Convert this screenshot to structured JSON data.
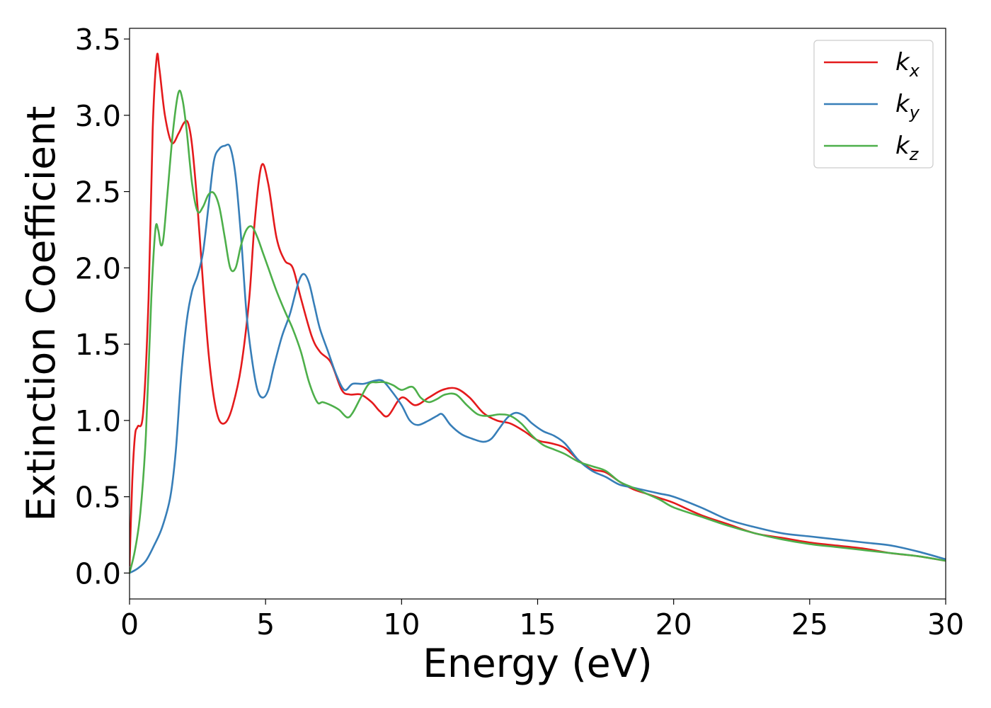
{
  "chart_data": {
    "type": "line",
    "title": "",
    "xlabel": "Energy (eV)",
    "ylabel": "Extinction Coefficient",
    "xlim": [
      0,
      30
    ],
    "ylim": [
      -0.17,
      3.57
    ],
    "xticks": [
      0,
      5,
      10,
      15,
      20,
      25,
      30
    ],
    "xtick_labels": [
      "0",
      "5",
      "10",
      "15",
      "20",
      "25",
      "30"
    ],
    "yticks": [
      0.0,
      0.5,
      1.0,
      1.5,
      2.0,
      2.5,
      3.0,
      3.5
    ],
    "ytick_labels": [
      "0.0",
      "0.5",
      "1.0",
      "1.5",
      "2.0",
      "2.5",
      "3.0",
      "3.5"
    ],
    "grid": false,
    "legend_position": "top-right",
    "series": [
      {
        "name": "k",
        "subscript": "x",
        "color": "#e41a1c",
        "x": [
          0,
          0.1,
          0.2,
          0.3,
          0.5,
          0.7,
          0.85,
          1.0,
          1.1,
          1.3,
          1.55,
          1.8,
          2.0,
          2.15,
          2.3,
          2.5,
          2.7,
          2.9,
          3.1,
          3.3,
          3.55,
          3.8,
          4.1,
          4.4,
          4.6,
          4.85,
          5.1,
          5.4,
          5.7,
          6.0,
          6.3,
          6.7,
          7.0,
          7.4,
          7.8,
          8.1,
          8.5,
          8.9,
          9.2,
          9.5,
          10.0,
          10.5,
          11.0,
          11.5,
          12.0,
          12.5,
          13.0,
          13.5,
          14.0,
          14.5,
          15.0,
          15.5,
          16.0,
          16.5,
          17.0,
          17.5,
          18.0,
          18.5,
          19.0,
          19.5,
          20.0,
          21.0,
          22.0,
          23.0,
          24.0,
          25.0,
          26.0,
          27.0,
          28.0,
          29.0,
          30.0
        ],
        "y": [
          0.05,
          0.6,
          0.9,
          0.96,
          1.05,
          1.8,
          2.9,
          3.38,
          3.3,
          3.0,
          2.82,
          2.88,
          2.95,
          2.95,
          2.8,
          2.4,
          1.9,
          1.45,
          1.15,
          1.0,
          0.99,
          1.1,
          1.35,
          1.8,
          2.3,
          2.67,
          2.55,
          2.2,
          2.05,
          2.0,
          1.8,
          1.55,
          1.45,
          1.38,
          1.2,
          1.17,
          1.17,
          1.12,
          1.06,
          1.03,
          1.15,
          1.1,
          1.15,
          1.2,
          1.21,
          1.15,
          1.05,
          1.0,
          0.98,
          0.93,
          0.87,
          0.85,
          0.82,
          0.74,
          0.68,
          0.66,
          0.6,
          0.55,
          0.52,
          0.49,
          0.46,
          0.38,
          0.32,
          0.26,
          0.23,
          0.2,
          0.18,
          0.16,
          0.13,
          0.11,
          0.08
        ]
      },
      {
        "name": "k",
        "subscript": "y",
        "color": "#377eb8",
        "x": [
          0,
          0.3,
          0.6,
          0.9,
          1.2,
          1.5,
          1.7,
          1.9,
          2.1,
          2.3,
          2.5,
          2.7,
          2.9,
          3.1,
          3.3,
          3.5,
          3.7,
          3.9,
          4.1,
          4.3,
          4.5,
          4.7,
          4.9,
          5.1,
          5.3,
          5.6,
          5.9,
          6.2,
          6.4,
          6.6,
          6.8,
          7.0,
          7.3,
          7.6,
          7.9,
          8.2,
          8.6,
          9.0,
          9.3,
          9.6,
          10.0,
          10.3,
          10.6,
          11.0,
          11.3,
          11.5,
          11.8,
          12.2,
          12.6,
          13.0,
          13.3,
          13.6,
          13.9,
          14.2,
          14.5,
          14.8,
          15.2,
          15.6,
          16.0,
          16.5,
          17.0,
          17.5,
          18.0,
          18.5,
          19.0,
          19.5,
          20.0,
          21.0,
          22.0,
          23.0,
          24.0,
          25.0,
          26.0,
          27.0,
          28.0,
          29.0,
          30.0
        ],
        "y": [
          0.0,
          0.03,
          0.08,
          0.18,
          0.3,
          0.5,
          0.8,
          1.3,
          1.65,
          1.85,
          1.95,
          2.1,
          2.4,
          2.7,
          2.78,
          2.8,
          2.79,
          2.6,
          2.2,
          1.7,
          1.4,
          1.2,
          1.15,
          1.2,
          1.35,
          1.55,
          1.7,
          1.9,
          1.96,
          1.9,
          1.75,
          1.6,
          1.45,
          1.3,
          1.2,
          1.24,
          1.24,
          1.26,
          1.26,
          1.2,
          1.1,
          1.0,
          0.97,
          1.0,
          1.03,
          1.04,
          0.97,
          0.91,
          0.88,
          0.86,
          0.88,
          0.95,
          1.02,
          1.05,
          1.03,
          0.98,
          0.93,
          0.9,
          0.85,
          0.74,
          0.67,
          0.63,
          0.58,
          0.56,
          0.54,
          0.52,
          0.5,
          0.43,
          0.35,
          0.3,
          0.26,
          0.24,
          0.22,
          0.2,
          0.18,
          0.14,
          0.09
        ]
      },
      {
        "name": "k",
        "subscript": "z",
        "color": "#4daf4a",
        "x": [
          0,
          0.2,
          0.4,
          0.6,
          0.8,
          0.95,
          1.05,
          1.15,
          1.25,
          1.4,
          1.6,
          1.8,
          1.95,
          2.1,
          2.3,
          2.5,
          2.7,
          2.9,
          3.1,
          3.3,
          3.5,
          3.7,
          3.9,
          4.1,
          4.3,
          4.5,
          4.7,
          4.9,
          5.1,
          5.4,
          5.7,
          6.0,
          6.3,
          6.6,
          6.9,
          7.1,
          7.4,
          7.7,
          8.0,
          8.2,
          8.5,
          8.8,
          9.1,
          9.4,
          9.7,
          10.0,
          10.4,
          10.7,
          11.0,
          11.3,
          11.6,
          12.0,
          12.4,
          12.8,
          13.2,
          13.6,
          14.0,
          14.4,
          14.8,
          15.2,
          15.6,
          16.0,
          16.5,
          17.0,
          17.5,
          18.0,
          18.5,
          19.0,
          19.5,
          20.0,
          21.0,
          22.0,
          23.0,
          24.0,
          25.0,
          26.0,
          27.0,
          28.0,
          29.0,
          30.0
        ],
        "y": [
          0.0,
          0.15,
          0.4,
          0.9,
          1.8,
          2.25,
          2.25,
          2.15,
          2.2,
          2.5,
          2.9,
          3.15,
          3.1,
          2.9,
          2.55,
          2.37,
          2.4,
          2.48,
          2.49,
          2.4,
          2.2,
          2.0,
          2.0,
          2.15,
          2.25,
          2.27,
          2.2,
          2.1,
          2.0,
          1.85,
          1.72,
          1.6,
          1.45,
          1.25,
          1.12,
          1.12,
          1.1,
          1.07,
          1.02,
          1.05,
          1.15,
          1.24,
          1.25,
          1.25,
          1.23,
          1.2,
          1.22,
          1.15,
          1.12,
          1.14,
          1.17,
          1.17,
          1.1,
          1.04,
          1.03,
          1.04,
          1.03,
          0.98,
          0.9,
          0.84,
          0.81,
          0.78,
          0.73,
          0.7,
          0.67,
          0.6,
          0.56,
          0.52,
          0.48,
          0.43,
          0.37,
          0.31,
          0.26,
          0.22,
          0.19,
          0.17,
          0.15,
          0.13,
          0.11,
          0.08
        ]
      }
    ]
  }
}
